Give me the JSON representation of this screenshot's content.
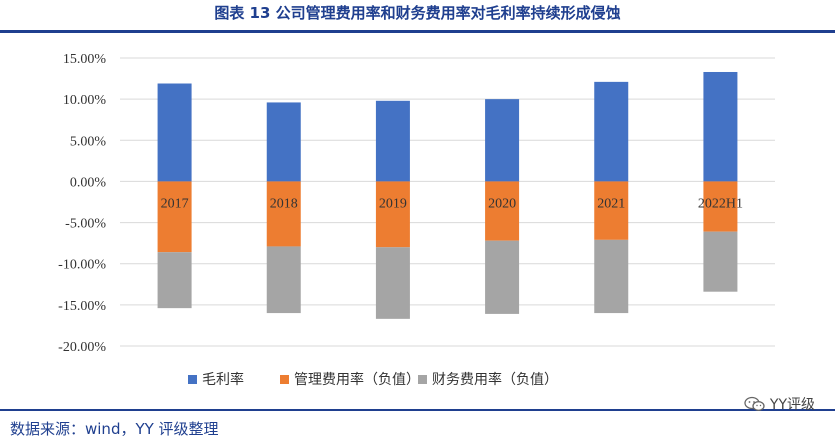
{
  "header": {
    "title": "图表 13 公司管理费用率和财务费用率对毛利率持续形成侵蚀"
  },
  "footer": {
    "source": "数据来源：wind，YY 评级整理",
    "brand": "YY评级"
  },
  "chart_data": {
    "type": "bar",
    "stacked": true,
    "categories": [
      "2017",
      "2018",
      "2019",
      "2020",
      "2021",
      "2022H1"
    ],
    "series": [
      {
        "name": "毛利率",
        "color": "#4472c4",
        "values": [
          11.9,
          9.6,
          9.8,
          10.0,
          12.1,
          13.3
        ]
      },
      {
        "name": "管理费用率（负值）",
        "color": "#ed7d31",
        "values": [
          -8.6,
          -7.9,
          -8.0,
          -7.2,
          -7.1,
          -6.1
        ]
      },
      {
        "name": "财务费用率（负值）",
        "color": "#a5a5a5",
        "values": [
          -6.8,
          -8.1,
          -8.7,
          -8.9,
          -8.9,
          -7.3
        ]
      }
    ],
    "ylim": [
      -20,
      15
    ],
    "yticks": [
      "15.00%",
      "10.00%",
      "5.00%",
      "0.00%",
      "-5.00%",
      "-10.00%",
      "-15.00%",
      "-20.00%"
    ],
    "grid": true,
    "legend_position": "bottom"
  }
}
